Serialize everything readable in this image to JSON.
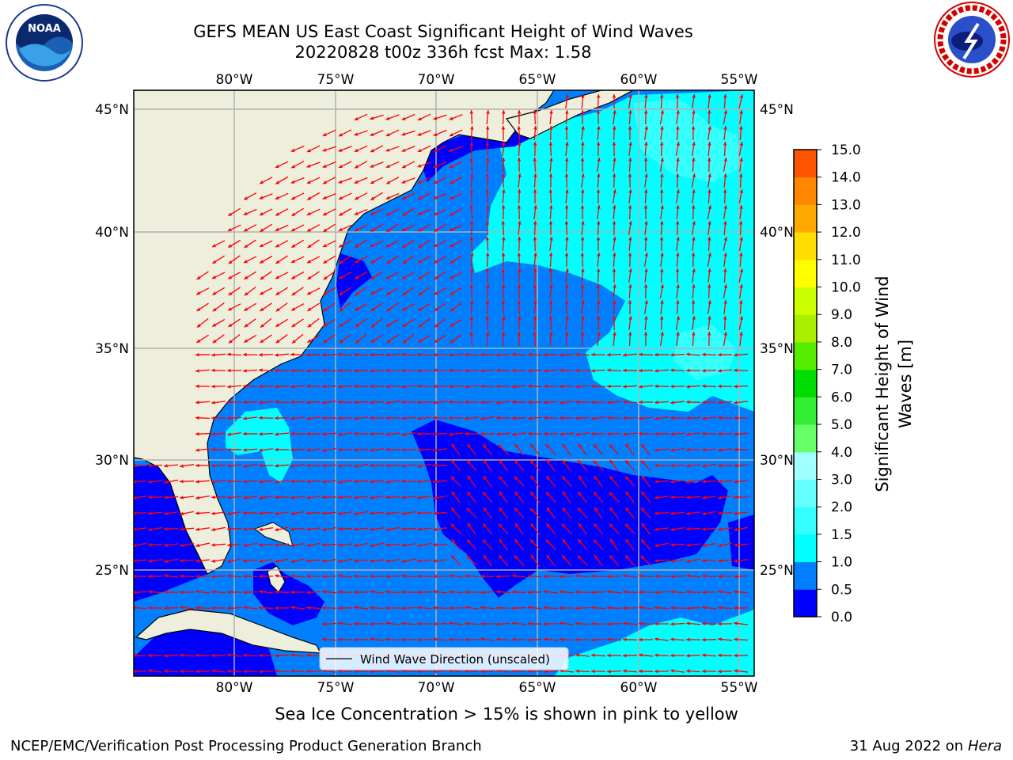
{
  "header": {
    "title": "GEFS MEAN US East Coast Significant Height of Wind Waves",
    "subtitle": "20220828 t00z 336h fcst   Max: 1.58",
    "left_logo": "noaa-logo",
    "right_logo": "nws-logo"
  },
  "map": {
    "lon_labels": [
      "80°W",
      "75°W",
      "70°W",
      "65°W",
      "60°W",
      "55°W"
    ],
    "lon_values": [
      -80,
      -75,
      -70,
      -65,
      -60,
      -55
    ],
    "lat_labels": [
      "45°N",
      "40°N",
      "35°N",
      "30°N",
      "25°N"
    ],
    "lat_values": [
      45,
      40,
      35,
      30,
      25
    ],
    "lon_range": [
      -85,
      -54.3
    ],
    "lat_range": [
      20.6,
      46.0
    ],
    "gridlines": true,
    "land_color": "#eeeedc",
    "arrow_color": "#ff0000",
    "legend_label": "Wind Wave Direction (unscaled)"
  },
  "colorbar": {
    "title_line1": "Significant Height of Wind",
    "title_line2": "Waves [m]",
    "ticks": [
      "0.0",
      "0.5",
      "1.0",
      "1.5",
      "2.0",
      "3.0",
      "4.0",
      "5.0",
      "6.0",
      "7.0",
      "8.0",
      "9.0",
      "10.0",
      "11.0",
      "12.0",
      "13.0",
      "14.0",
      "15.0"
    ],
    "colors": [
      "#0000ff",
      "#0080ff",
      "#00ffff",
      "#33ffff",
      "#66ffff",
      "#a0ffff",
      "#66ff66",
      "#33ee33",
      "#00dd00",
      "#55ee00",
      "#aaee00",
      "#ccff00",
      "#ffff00",
      "#ffdd00",
      "#ffaa00",
      "#ff8800",
      "#ff5500",
      "#ff2200",
      "#ff0000"
    ]
  },
  "caption": "Sea Ice Concentration > 15% is shown in pink to yellow",
  "footer": {
    "left": "NCEP/EMC/Verification Post Processing Product Generation Branch",
    "right_date": "31 Aug 2022 on",
    "right_machine": "Hera"
  }
}
